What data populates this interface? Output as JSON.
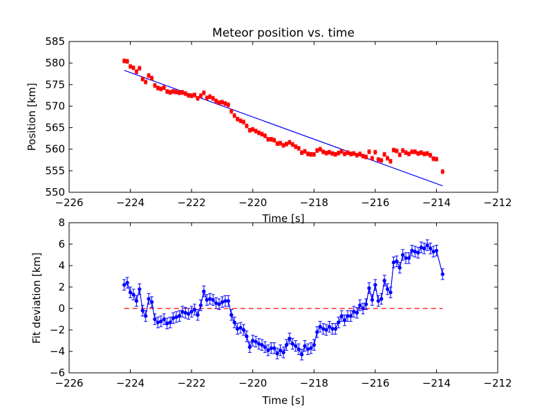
{
  "figure": {
    "title": "Meteor position vs. time"
  },
  "chart_data": [
    {
      "type": "scatter",
      "title": "Meteor position vs. time",
      "xlabel": "Time [s]",
      "ylabel": "Position [km]",
      "xlim": [
        -226,
        -212
      ],
      "ylim": [
        550,
        585
      ],
      "xticks": [
        "−226",
        "−224",
        "−222",
        "−220",
        "−218",
        "−216",
        "−214",
        "−212"
      ],
      "yticks": [
        "550",
        "555",
        "560",
        "565",
        "570",
        "575",
        "580",
        "585"
      ],
      "grid": false,
      "legend": "none",
      "series": [
        {
          "marker": "dot with error bars",
          "color": "#ff0000",
          "x": [
            -224.2,
            -224.1,
            -224.0,
            -223.9,
            -223.8,
            -223.7,
            -223.6,
            -223.5,
            -223.4,
            -223.3,
            -223.2,
            -223.1,
            -223.0,
            -222.9,
            -222.8,
            -222.7,
            -222.6,
            -222.5,
            -222.4,
            -222.3,
            -222.2,
            -222.1,
            -222.0,
            -221.9,
            -221.8,
            -221.7,
            -221.6,
            -221.5,
            -221.4,
            -221.3,
            -221.2,
            -221.1,
            -221.0,
            -220.9,
            -220.8,
            -220.7,
            -220.6,
            -220.5,
            -220.4,
            -220.3,
            -220.2,
            -220.1,
            -220.0,
            -219.9,
            -219.8,
            -219.7,
            -219.6,
            -219.5,
            -219.4,
            -219.3,
            -219.2,
            -219.1,
            -219.0,
            -218.9,
            -218.8,
            -218.7,
            -218.6,
            -218.5,
            -218.4,
            -218.3,
            -218.2,
            -218.1,
            -218.0,
            -217.9,
            -217.8,
            -217.7,
            -217.6,
            -217.5,
            -217.4,
            -217.3,
            -217.2,
            -217.1,
            -217.0,
            -216.9,
            -216.8,
            -216.7,
            -216.6,
            -216.5,
            -216.4,
            -216.3,
            -216.2,
            -216.1,
            -216.0,
            -215.9,
            -215.8,
            -215.7,
            -215.6,
            -215.5,
            -215.4,
            -215.3,
            -215.2,
            -215.1,
            -215.0,
            -214.9,
            -214.8,
            -214.7,
            -214.6,
            -214.5,
            -214.4,
            -214.3,
            -214.2,
            -214.1,
            -214.0,
            -213.8
          ],
          "y": [
            580.5,
            580.4,
            579.2,
            578.9,
            578.0,
            578.8,
            576.3,
            575.6,
            577.1,
            576.5,
            574.8,
            574.2,
            574.0,
            574.3,
            573.4,
            573.2,
            573.4,
            573.3,
            573.1,
            573.2,
            572.9,
            572.5,
            572.4,
            572.6,
            571.8,
            572.4,
            573.1,
            571.9,
            572.2,
            571.8,
            571.2,
            570.8,
            570.9,
            570.6,
            570.3,
            568.8,
            567.8,
            567.0,
            566.6,
            566.3,
            565.4,
            564.4,
            564.6,
            564.2,
            563.8,
            563.5,
            563.1,
            562.3,
            562.3,
            562.1,
            561.3,
            561.4,
            560.9,
            561.2,
            561.6,
            561.1,
            560.6,
            560.2,
            559.2,
            559.5,
            558.9,
            558.8,
            558.8,
            559.7,
            560.0,
            559.4,
            559.1,
            559.3,
            559.0,
            558.8,
            559.1,
            559.5,
            558.9,
            559.2,
            558.9,
            559.0,
            558.6,
            558.9,
            558.4,
            558.2,
            559.4,
            557.9,
            559.3,
            557.6,
            557.4,
            558.8,
            557.9,
            557.2,
            559.8,
            559.6,
            558.7,
            559.7,
            559.2,
            558.9,
            559.4,
            559.4,
            559.0,
            559.2,
            558.9,
            559.0,
            558.6,
            557.8,
            557.7,
            554.8
          ],
          "error": 0.45
        },
        {
          "type": "line",
          "style": "solid fit line",
          "color": "#0000ff",
          "x": [
            -224.2,
            -213.8
          ],
          "y": [
            578.3,
            551.5
          ]
        }
      ]
    },
    {
      "type": "line",
      "title": "",
      "xlabel": "Time [s]",
      "ylabel": "Fit deviation [km]",
      "xlim": [
        -226,
        -212
      ],
      "ylim": [
        -6,
        8
      ],
      "xticks": [
        "−226",
        "−224",
        "−222",
        "−220",
        "−218",
        "−216",
        "−214",
        "−212"
      ],
      "yticks": [
        "−6",
        "−4",
        "−2",
        "0",
        "2",
        "4",
        "6",
        "8"
      ],
      "grid": false,
      "legend": "none",
      "series": [
        {
          "marker": "dot with error bars, connected",
          "color": "#0000ff",
          "x": [
            -224.2,
            -224.1,
            -224.0,
            -223.9,
            -223.8,
            -223.7,
            -223.6,
            -223.5,
            -223.4,
            -223.3,
            -223.2,
            -223.1,
            -223.0,
            -222.9,
            -222.8,
            -222.7,
            -222.6,
            -222.5,
            -222.4,
            -222.3,
            -222.2,
            -222.1,
            -222.0,
            -221.9,
            -221.8,
            -221.7,
            -221.6,
            -221.5,
            -221.4,
            -221.3,
            -221.2,
            -221.1,
            -221.0,
            -220.9,
            -220.8,
            -220.7,
            -220.6,
            -220.5,
            -220.4,
            -220.3,
            -220.2,
            -220.1,
            -220.0,
            -219.9,
            -219.8,
            -219.7,
            -219.6,
            -219.5,
            -219.4,
            -219.3,
            -219.2,
            -219.1,
            -219.0,
            -218.9,
            -218.8,
            -218.7,
            -218.6,
            -218.5,
            -218.4,
            -218.3,
            -218.2,
            -218.1,
            -218.0,
            -217.9,
            -217.8,
            -217.7,
            -217.6,
            -217.5,
            -217.4,
            -217.3,
            -217.2,
            -217.1,
            -217.0,
            -216.9,
            -216.8,
            -216.7,
            -216.6,
            -216.5,
            -216.4,
            -216.3,
            -216.2,
            -216.1,
            -216.0,
            -215.9,
            -215.8,
            -215.7,
            -215.6,
            -215.5,
            -215.4,
            -215.3,
            -215.2,
            -215.1,
            -215.0,
            -214.9,
            -214.8,
            -214.7,
            -214.6,
            -214.5,
            -214.4,
            -214.3,
            -214.2,
            -214.1,
            -214.0,
            -213.8
          ],
          "y": [
            2.2,
            2.4,
            1.5,
            1.3,
            0.7,
            1.8,
            -0.2,
            -0.7,
            0.9,
            0.6,
            -1.0,
            -1.3,
            -1.2,
            -1.0,
            -1.4,
            -1.3,
            -0.9,
            -0.8,
            -0.7,
            -0.3,
            -0.4,
            -0.5,
            -0.3,
            -0.1,
            -0.6,
            0.3,
            1.6,
            0.8,
            0.9,
            0.8,
            0.5,
            0.4,
            0.6,
            0.7,
            0.7,
            -0.6,
            -1.3,
            -1.9,
            -1.8,
            -2.0,
            -2.6,
            -3.6,
            -3.0,
            -3.1,
            -3.3,
            -3.4,
            -3.6,
            -3.9,
            -3.7,
            -3.7,
            -4.2,
            -3.9,
            -4.1,
            -3.4,
            -2.8,
            -3.3,
            -3.5,
            -3.8,
            -4.3,
            -3.5,
            -3.8,
            -3.7,
            -3.4,
            -2.2,
            -1.7,
            -1.9,
            -2.0,
            -1.7,
            -1.9,
            -1.9,
            -1.3,
            -0.7,
            -1.1,
            -0.7,
            -0.7,
            -0.3,
            -0.4,
            0.3,
            0.0,
            0.4,
            1.9,
            0.8,
            2.2,
            0.7,
            0.9,
            2.6,
            1.8,
            1.5,
            4.3,
            4.4,
            3.8,
            5.0,
            4.7,
            4.7,
            5.4,
            5.3,
            5.2,
            5.7,
            5.6,
            5.9,
            5.6,
            5.3,
            5.4,
            3.2
          ],
          "error": 0.5
        },
        {
          "style": "dashed zero reference line",
          "color": "#ff0000",
          "x": [
            -224.2,
            -213.8
          ],
          "y": [
            0,
            0
          ]
        }
      ]
    }
  ]
}
